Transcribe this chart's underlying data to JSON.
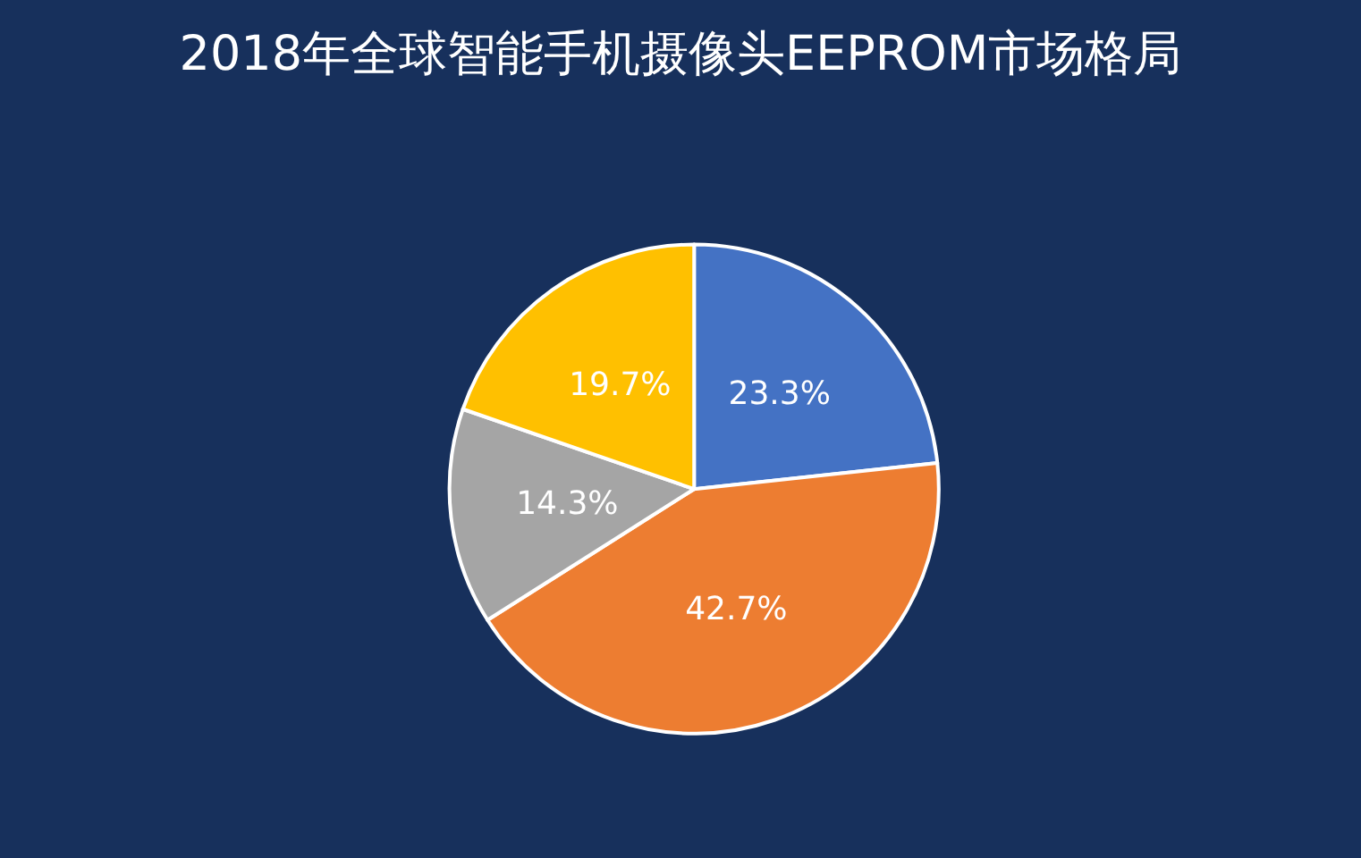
{
  "chart_data": {
    "type": "pie",
    "title": "2018年全球智能手机摄像头EEPROM市场格局",
    "categories": [
      null,
      null,
      null,
      null
    ],
    "values": [
      23.3,
      42.7,
      14.3,
      19.7
    ],
    "value_labels": [
      "23.3%",
      "42.7%",
      "14.3%",
      "19.7%"
    ],
    "colors": [
      "#4472c4",
      "#ed7d31",
      "#a5a5a5",
      "#ffc000"
    ]
  }
}
